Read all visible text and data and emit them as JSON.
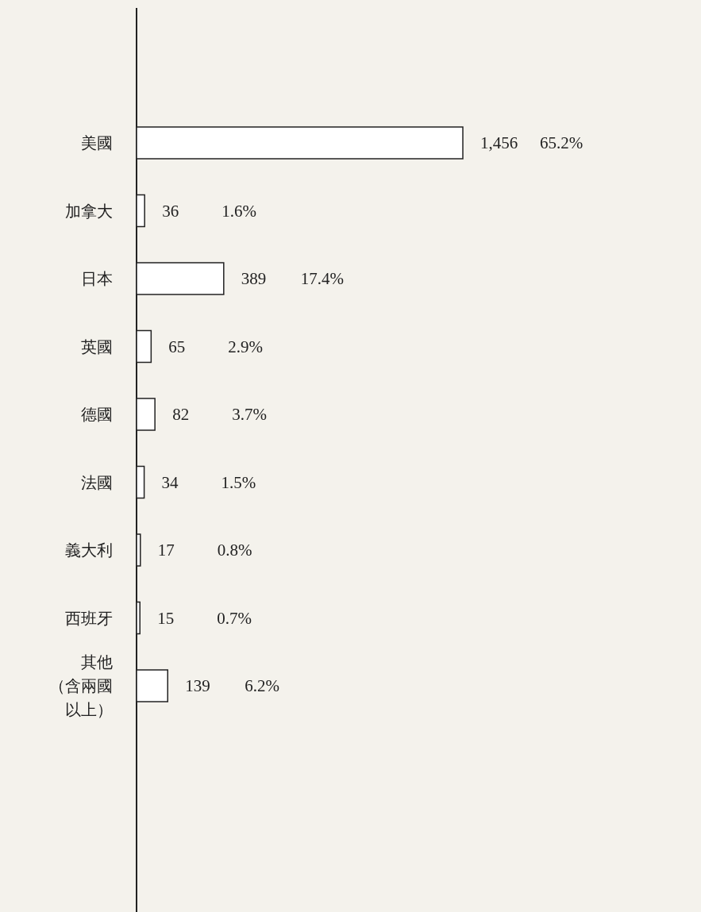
{
  "chart_data": {
    "type": "bar",
    "orientation": "horizontal",
    "categories": [
      "美國",
      "加拿大",
      "日本",
      "英國",
      "德國",
      "法國",
      "義大利",
      "西班牙",
      "其他（含兩國以上）"
    ],
    "values": [
      1456,
      36,
      389,
      65,
      82,
      34,
      17,
      15,
      139
    ],
    "color": "#222222",
    "value_labels": [
      "1,456",
      "36",
      "389",
      "65",
      "82",
      "34",
      "17",
      "15",
      "139"
    ],
    "annotations": [
      "65.2%",
      "1.6%",
      "17.4%",
      "2.9%",
      "3.7%",
      "1.5%",
      "0.8%",
      "0.7%",
      "6.2%"
    ]
  }
}
